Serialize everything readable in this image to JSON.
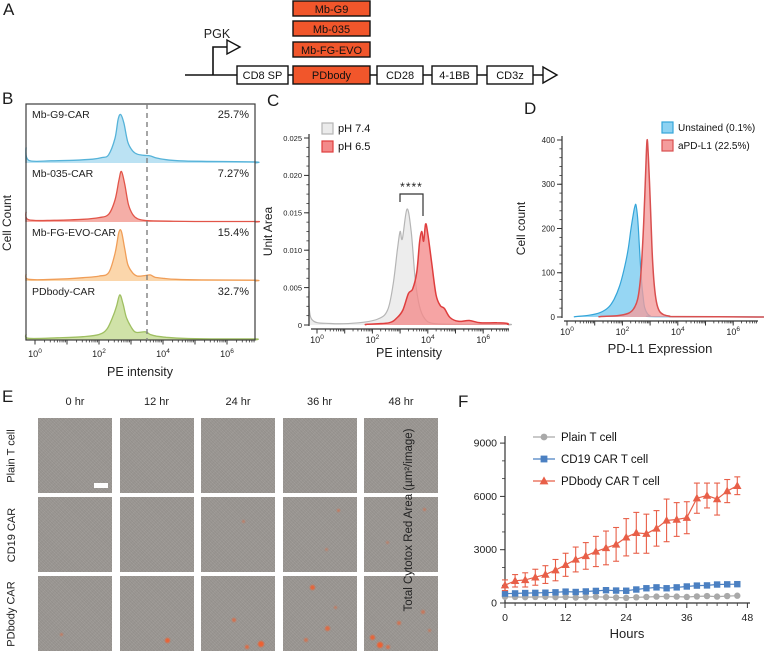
{
  "letters": {
    "A": "A",
    "B": "B",
    "C": "C",
    "D": "D",
    "E": "E",
    "F": "F"
  },
  "panelA": {
    "promoter_label": "PGK",
    "mb_boxes": [
      "Mb-G9",
      "Mb-035",
      "Mb-FG-EVO"
    ],
    "construct_boxes": [
      "CD8 SP",
      "PDbody",
      "CD28",
      "4-1BB",
      "CD3z"
    ],
    "orange_color": "#f1562b"
  },
  "panelE": {
    "column_headers": [
      "0 hr",
      "12 hr",
      "24 hr",
      "36 hr",
      "48 hr"
    ],
    "row_labels": [
      "Plain T cell",
      "CD19 CAR",
      "PDbody CAR"
    ],
    "dot_color": "#ef6030",
    "rows_cells": [
      [
        {
          "scalebar": true,
          "dots": []
        },
        {
          "dots": []
        },
        {
          "dots": []
        },
        {
          "dots": []
        },
        {
          "dots": []
        }
      ],
      [
        {
          "dots": []
        },
        {
          "dots": []
        },
        {
          "dots": [
            [
              55,
              30,
              3,
              0.45
            ]
          ]
        },
        {
          "dots": [
            [
              74,
              16,
              3,
              0.55
            ],
            [
              58,
              68,
              3,
              0.4
            ]
          ]
        },
        {
          "dots": [
            [
              80,
              14,
              3,
              0.5
            ],
            [
              30,
              58,
              3,
              0.4
            ]
          ]
        }
      ],
      [
        {
          "dots": [
            [
              30,
              76,
              3,
              0.5
            ]
          ]
        },
        {
          "dots": [
            [
              62,
              82,
              5,
              0.95
            ]
          ]
        },
        {
          "dots": [
            [
              42,
              56,
              4,
              0.7
            ],
            [
              77,
              87,
              6,
              1
            ],
            [
              60,
              92,
              4,
              0.8
            ]
          ]
        },
        {
          "dots": [
            [
              37,
              12,
              5,
              0.9
            ],
            [
              57,
              66,
              5,
              0.8
            ],
            [
              29,
              82,
              4,
              0.6
            ],
            [
              70,
              40,
              3,
              0.5
            ]
          ]
        },
        {
          "dots": [
            [
              8,
              78,
              5,
              0.9
            ],
            [
              17,
              88,
              6,
              1
            ],
            [
              44,
              60,
              4,
              0.65
            ],
            [
              77,
              45,
              4,
              0.55
            ],
            [
              30,
              92,
              4,
              0.7
            ],
            [
              87,
              70,
              3,
              0.5
            ]
          ]
        }
      ]
    ]
  },
  "chart_data": [
    {
      "id": "B",
      "type": "histogram-stack",
      "xlabel": "PE intensity",
      "ylabel": "Cell Count",
      "x_tick_exponents": [
        0,
        2,
        4,
        6
      ],
      "gate_log": 3.5,
      "rows": [
        {
          "label": "Mb-G9-CAR",
          "percent": "25.7%",
          "fill": "#b4dff2",
          "stroke": "#56b3d9",
          "curve": [
            [
              -0.28,
              0.28
            ],
            [
              -0.2,
              0.05
            ],
            [
              0.5,
              0.04
            ],
            [
              1.2,
              0.05
            ],
            [
              1.8,
              0.07
            ],
            [
              2.1,
              0.1
            ],
            [
              2.3,
              0.15
            ],
            [
              2.5,
              0.45
            ],
            [
              2.6,
              0.8
            ],
            [
              2.68,
              0.88
            ],
            [
              2.78,
              0.72
            ],
            [
              2.9,
              0.38
            ],
            [
              3.05,
              0.22
            ],
            [
              3.2,
              0.16
            ],
            [
              3.4,
              0.14
            ],
            [
              3.6,
              0.13
            ],
            [
              3.8,
              0.09
            ],
            [
              4.1,
              0.06
            ],
            [
              4.5,
              0.04
            ],
            [
              5.2,
              0.03
            ],
            [
              6.88,
              0.02
            ]
          ]
        },
        {
          "label": "Mb-035-CAR",
          "percent": "7.27%",
          "fill": "#f4a59d",
          "stroke": "#e25549",
          "curve": [
            [
              -0.28,
              0.18
            ],
            [
              -0.2,
              0.04
            ],
            [
              0.6,
              0.03
            ],
            [
              1.5,
              0.05
            ],
            [
              2.0,
              0.08
            ],
            [
              2.3,
              0.14
            ],
            [
              2.5,
              0.4
            ],
            [
              2.62,
              0.75
            ],
            [
              2.7,
              0.92
            ],
            [
              2.8,
              0.7
            ],
            [
              2.92,
              0.32
            ],
            [
              3.05,
              0.14
            ],
            [
              3.2,
              0.06
            ],
            [
              3.4,
              0.03
            ],
            [
              3.7,
              0.02
            ],
            [
              4.2,
              0.015
            ],
            [
              5.0,
              0.01
            ],
            [
              6.88,
              0.01
            ]
          ]
        },
        {
          "label": "Mb-FG-EVO-CAR",
          "percent": "15.4%",
          "fill": "#fbd2a2",
          "stroke": "#f09e58",
          "curve": [
            [
              -0.28,
              0.12
            ],
            [
              -0.2,
              0.03
            ],
            [
              0.6,
              0.03
            ],
            [
              1.5,
              0.06
            ],
            [
              2.0,
              0.09
            ],
            [
              2.3,
              0.15
            ],
            [
              2.5,
              0.5
            ],
            [
              2.62,
              0.88
            ],
            [
              2.7,
              0.9
            ],
            [
              2.8,
              0.6
            ],
            [
              2.9,
              0.3
            ],
            [
              3.05,
              0.15
            ],
            [
              3.2,
              0.09
            ],
            [
              3.45,
              0.1
            ],
            [
              3.6,
              0.11
            ],
            [
              3.75,
              0.07
            ],
            [
              4.0,
              0.05
            ],
            [
              4.4,
              0.03
            ],
            [
              5.2,
              0.02
            ],
            [
              6.88,
              0.015
            ]
          ]
        },
        {
          "label": "PDbody-CAR",
          "percent": "32.7%",
          "fill": "#cbdf9f",
          "stroke": "#9fbf62",
          "curve": [
            [
              -0.28,
              0.1
            ],
            [
              -0.2,
              0.03
            ],
            [
              0.7,
              0.04
            ],
            [
              1.5,
              0.06
            ],
            [
              2.0,
              0.1
            ],
            [
              2.25,
              0.2
            ],
            [
              2.45,
              0.45
            ],
            [
              2.55,
              0.62
            ],
            [
              2.65,
              0.82
            ],
            [
              2.75,
              0.66
            ],
            [
              2.85,
              0.42
            ],
            [
              3.0,
              0.24
            ],
            [
              3.15,
              0.14
            ],
            [
              3.45,
              0.15
            ],
            [
              3.6,
              0.1
            ],
            [
              3.8,
              0.07
            ],
            [
              4.1,
              0.05
            ],
            [
              4.6,
              0.03
            ],
            [
              5.5,
              0.02
            ],
            [
              6.88,
              0.02
            ]
          ]
        }
      ]
    },
    {
      "id": "C",
      "type": "histogram-overlay",
      "xlabel": "PE intensity",
      "ylabel": "Unit Area",
      "y_tick_labels": [
        "0",
        "0.005",
        "0.010",
        "0.015",
        "0.020",
        "0.025"
      ],
      "y_tick_values": [
        0,
        0.005,
        0.01,
        0.015,
        0.02,
        0.025
      ],
      "y_max": 0.025,
      "x_tick_exponents": [
        0,
        2,
        4,
        6
      ],
      "significance": "****",
      "series": [
        {
          "label": "pH 7.4",
          "fill": "#ebebeb",
          "stroke": "#b5b5b5",
          "curve": [
            [
              -0.29,
              0.0045
            ],
            [
              -0.2,
              0.0008
            ],
            [
              0.5,
              0.0002
            ],
            [
              1.5,
              0.0003
            ],
            [
              2.2,
              0.0008
            ],
            [
              2.55,
              0.002
            ],
            [
              2.75,
              0.0055
            ],
            [
              2.9,
              0.01
            ],
            [
              3.0,
              0.0125
            ],
            [
              3.08,
              0.0115
            ],
            [
              3.25,
              0.0155
            ],
            [
              3.4,
              0.0125
            ],
            [
              3.55,
              0.006
            ],
            [
              3.7,
              0.0025
            ],
            [
              3.9,
              0.0008
            ],
            [
              4.2,
              0.0002
            ],
            [
              5.0,
              0.0001
            ],
            [
              6.88,
              0.0001
            ]
          ]
        },
        {
          "label": "pH 6.5",
          "fill": "#f38a8a",
          "stroke": "#df3e3e",
          "curve": [
            [
              1.8,
              0.0001
            ],
            [
              2.6,
              0.0003
            ],
            [
              2.9,
              0.001
            ],
            [
              3.1,
              0.002
            ],
            [
              3.3,
              0.0042
            ],
            [
              3.45,
              0.0048
            ],
            [
              3.6,
              0.007
            ],
            [
              3.7,
              0.011
            ],
            [
              3.78,
              0.0125
            ],
            [
              3.85,
              0.0112
            ],
            [
              3.92,
              0.0135
            ],
            [
              4.0,
              0.0122
            ],
            [
              4.15,
              0.008
            ],
            [
              4.3,
              0.004
            ],
            [
              4.45,
              0.0026
            ],
            [
              4.6,
              0.0022
            ],
            [
              4.8,
              0.001
            ],
            [
              5.1,
              0.0005
            ],
            [
              5.5,
              0.0006
            ],
            [
              5.9,
              0.0003
            ],
            [
              6.5,
              0.0003
            ],
            [
              6.88,
              0.0002
            ]
          ]
        }
      ]
    },
    {
      "id": "D",
      "type": "histogram-overlay",
      "xlabel": "PD-L1 Expression",
      "ylabel": "Cell count",
      "y_tick_labels": [
        "0",
        "100",
        "200",
        "300",
        "400"
      ],
      "y_tick_values": [
        0,
        100,
        200,
        300,
        400
      ],
      "y_max": 400,
      "x_tick_exponents": [
        0,
        2,
        4,
        6
      ],
      "series": [
        {
          "label": "Unstained (0.1%)",
          "fill": "#8dd2f2",
          "stroke": "#35a5d9",
          "curve": [
            [
              0.3,
              1
            ],
            [
              0.8,
              4
            ],
            [
              1.2,
              10
            ],
            [
              1.5,
              22
            ],
            [
              1.7,
              40
            ],
            [
              1.9,
              70
            ],
            [
              2.05,
              105
            ],
            [
              2.2,
              150
            ],
            [
              2.3,
              195
            ],
            [
              2.4,
              235
            ],
            [
              2.45,
              250
            ],
            [
              2.49,
              253
            ],
            [
              2.55,
              225
            ],
            [
              2.6,
              175
            ],
            [
              2.65,
              120
            ],
            [
              2.7,
              75
            ],
            [
              2.75,
              45
            ],
            [
              2.8,
              22
            ],
            [
              2.9,
              8
            ],
            [
              3.0,
              3
            ],
            [
              3.2,
              1
            ],
            [
              6.88,
              0
            ]
          ]
        },
        {
          "label": "aPD-L1 (22.5%)",
          "fill": "#f49c9c",
          "stroke": "#d94f4f",
          "curve": [
            [
              1.2,
              1
            ],
            [
              1.8,
              3
            ],
            [
              2.2,
              8
            ],
            [
              2.4,
              18
            ],
            [
              2.55,
              40
            ],
            [
              2.65,
              85
            ],
            [
              2.72,
              150
            ],
            [
              2.78,
              230
            ],
            [
              2.84,
              330
            ],
            [
              2.89,
              400
            ],
            [
              2.94,
              360
            ],
            [
              3.0,
              270
            ],
            [
              3.05,
              185
            ],
            [
              3.1,
              115
            ],
            [
              3.17,
              60
            ],
            [
              3.25,
              28
            ],
            [
              3.35,
              12
            ],
            [
              3.5,
              5
            ],
            [
              3.7,
              2
            ],
            [
              4.0,
              1
            ],
            [
              6.88,
              0
            ]
          ]
        }
      ]
    },
    {
      "id": "F",
      "type": "line-scatter",
      "xlabel": "Hours",
      "ylabel": "Total Cytotox Red Area (µm²/image)",
      "x_ticks": [
        0,
        12,
        24,
        36,
        48
      ],
      "y_tick_labels": [
        "0",
        "3000",
        "6000",
        "9000"
      ],
      "y_tick_values": [
        0,
        3000,
        6000,
        9000
      ],
      "ylim": [
        0,
        9300
      ],
      "hours": [
        0,
        2,
        4,
        6,
        8,
        10,
        12,
        14,
        16,
        18,
        20,
        22,
        24,
        26,
        28,
        30,
        32,
        34,
        36,
        38,
        40,
        42,
        44,
        46
      ],
      "series": [
        {
          "name": "Plain T cell",
          "color": "#a9a9a9",
          "marker": "circle",
          "values": [
            350,
            340,
            330,
            340,
            350,
            330,
            340,
            310,
            330,
            350,
            330,
            310,
            290,
            320,
            340,
            360,
            370,
            360,
            340,
            370,
            390,
            360,
            390,
            410
          ]
        },
        {
          "name": "CD19 CAR T cell",
          "color": "#4b80c2",
          "marker": "square",
          "values": [
            530,
            540,
            560,
            570,
            580,
            600,
            640,
            620,
            650,
            680,
            720,
            700,
            690,
            760,
            830,
            880,
            830,
            880,
            930,
            980,
            990,
            1040,
            1050,
            1060
          ]
        },
        {
          "name": "PDbody CAR T cell",
          "color": "#e85f48",
          "marker": "triangle",
          "values": [
            1000,
            1250,
            1300,
            1450,
            1600,
            1850,
            2150,
            2450,
            2650,
            2900,
            3100,
            3300,
            3700,
            3950,
            3900,
            4200,
            4650,
            4700,
            4800,
            5900,
            6050,
            5850,
            6300,
            6600
          ],
          "errors": [
            300,
            350,
            400,
            450,
            500,
            600,
            650,
            700,
            750,
            850,
            950,
            950,
            1050,
            1150,
            1100,
            1000,
            1200,
            950,
            900,
            850,
            700,
            900,
            650,
            500
          ]
        }
      ]
    }
  ]
}
